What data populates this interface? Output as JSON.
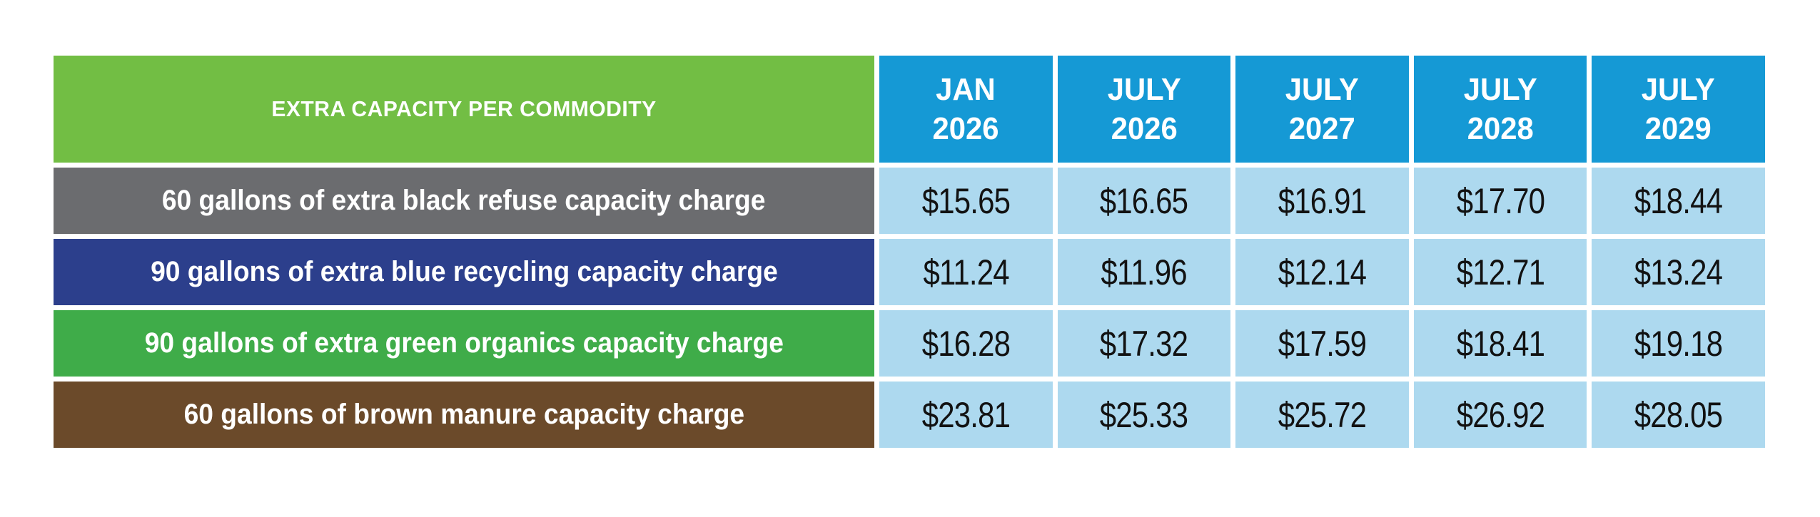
{
  "table": {
    "corner_header": "EXTRA CAPACITY PER COMMODITY",
    "columns": [
      {
        "line1": "JAN",
        "line2": "2026"
      },
      {
        "line1": "JULY",
        "line2": "2026"
      },
      {
        "line1": "JULY",
        "line2": "2027"
      },
      {
        "line1": "JULY",
        "line2": "2028"
      },
      {
        "line1": "JULY",
        "line2": "2029"
      }
    ],
    "rows": [
      {
        "label": "60 gallons of extra black refuse capacity charge",
        "color": "#6B6C6F",
        "values": [
          "$15.65",
          "$16.65",
          "$16.91",
          "$17.70",
          "$18.44"
        ]
      },
      {
        "label": "90 gallons of extra blue recycling capacity charge",
        "color": "#2C3F8C",
        "values": [
          "$11.24",
          "$11.96",
          "$12.14",
          "$12.71",
          "$13.24"
        ]
      },
      {
        "label": "90 gallons of extra green organics capacity charge",
        "color": "#3FAC49",
        "values": [
          "$16.28",
          "$17.32",
          "$17.59",
          "$18.41",
          "$19.18"
        ]
      },
      {
        "label": "60 gallons of brown manure capacity charge",
        "color": "#6B4A2A",
        "values": [
          "$23.81",
          "$25.33",
          "$25.72",
          "$26.92",
          "$28.05"
        ]
      }
    ],
    "colors": {
      "header_green": "#72BE44",
      "header_blue": "#1599D5",
      "cell_blue": "#ADD9EF",
      "header_text": "#FFFFFF",
      "value_text": "#121212"
    }
  },
  "chart_data": {
    "type": "table",
    "title": "EXTRA CAPACITY PER COMMODITY",
    "columns": [
      "JAN 2026",
      "JULY 2026",
      "JULY 2027",
      "JULY 2028",
      "JULY 2029"
    ],
    "rows": [
      {
        "label": "60 gallons of extra black refuse capacity charge",
        "values": [
          15.65,
          16.65,
          16.91,
          17.7,
          18.44
        ]
      },
      {
        "label": "90 gallons of extra blue recycling capacity charge",
        "values": [
          11.24,
          11.96,
          12.14,
          12.71,
          13.24
        ]
      },
      {
        "label": "90 gallons of extra green organics capacity charge",
        "values": [
          16.28,
          17.32,
          17.59,
          18.41,
          19.18
        ]
      },
      {
        "label": "60 gallons of brown manure capacity charge",
        "values": [
          23.81,
          25.33,
          25.72,
          26.92,
          28.05
        ]
      }
    ],
    "units": "USD"
  }
}
